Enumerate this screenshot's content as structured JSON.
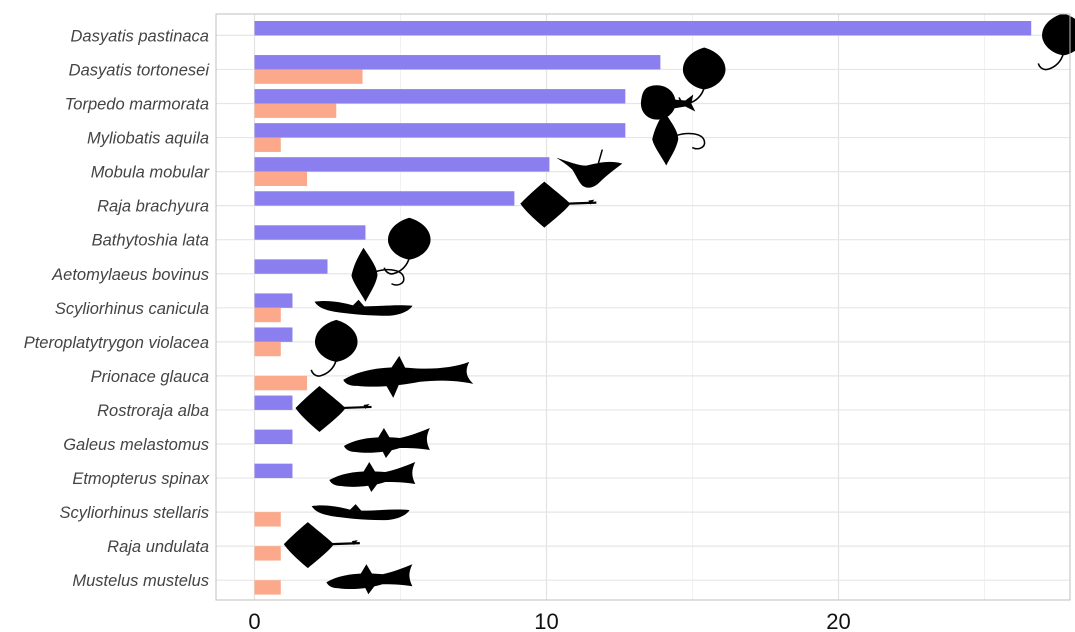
{
  "chart_data": {
    "type": "bar",
    "orientation": "horizontal",
    "categories": [
      "Dasyatis pastinaca",
      "Dasyatis tortonesei",
      "Torpedo marmorata",
      "Myliobatis aquila",
      "Mobula mobular",
      "Raja brachyura",
      "Bathytoshia lata",
      "Aetomylaeus bovinus",
      "Scyliorhinus canicula",
      "Pteroplatytrygon violacea",
      "Prionace glauca",
      "Rostroraja alba",
      "Galeus melastomus",
      "Etmopterus spinax",
      "Scyliorhinus stellaris",
      "Raja undulata",
      "Mustelus mustelus"
    ],
    "series": [
      {
        "values": [
          26.6,
          13.9,
          12.7,
          12.7,
          10.1,
          8.9,
          3.8,
          2.5,
          1.3,
          1.3,
          0,
          1.3,
          1.3,
          1.3,
          0,
          0,
          0
        ],
        "color": "#8B7FF0"
      },
      {
        "values": [
          0,
          3.7,
          2.8,
          0.9,
          1.8,
          0,
          0,
          0,
          0.9,
          0.9,
          1.8,
          0,
          0,
          0,
          0.9,
          0.9,
          0.9
        ],
        "color": "#FBA98A"
      }
    ],
    "xticks": [
      0,
      10,
      20
    ],
    "xlim": [
      -1.4,
      27.9
    ],
    "grid": true,
    "silhouettes": [
      {
        "category": "Dasyatis pastinaca",
        "icon": "stingray-silhouette-icon",
        "x": 27.7
      },
      {
        "category": "Dasyatis tortonesei",
        "icon": "stingray-silhouette-icon",
        "x": 15.4
      },
      {
        "category": "Torpedo marmorata",
        "icon": "torpedo-ray-silhouette-icon",
        "x": 14.0
      },
      {
        "category": "Myliobatis aquila",
        "icon": "eagle-ray-silhouette-icon",
        "x": 14.1
      },
      {
        "category": "Mobula mobular",
        "icon": "manta-ray-silhouette-icon",
        "x": 11.5
      },
      {
        "category": "Raja brachyura",
        "icon": "skate-silhouette-icon",
        "x": 10.2
      },
      {
        "category": "Bathytoshia lata",
        "icon": "stingray-silhouette-icon",
        "x": 5.3
      },
      {
        "category": "Aetomylaeus bovinus",
        "icon": "eagle-ray-silhouette-icon",
        "x": 3.8
      },
      {
        "category": "Scyliorhinus canicula",
        "icon": "catshark-silhouette-icon",
        "x": 3.7
      },
      {
        "category": "Pteroplatytrygon violacea",
        "icon": "stingray-silhouette-icon",
        "x": 2.8
      },
      {
        "category": "Prionace glauca",
        "icon": "blue-shark-silhouette-icon",
        "x": 5.3
      },
      {
        "category": "Rostroraja alba",
        "icon": "skate-silhouette-icon",
        "x": 2.5
      },
      {
        "category": "Galeus melastomus",
        "icon": "shark-silhouette-icon",
        "x": 4.5
      },
      {
        "category": "Etmopterus spinax",
        "icon": "shark-silhouette-icon",
        "x": 4.0
      },
      {
        "category": "Scyliorhinus stellaris",
        "icon": "catshark-silhouette-icon",
        "x": 3.6
      },
      {
        "category": "Raja undulata",
        "icon": "skate-silhouette-icon",
        "x": 2.1
      },
      {
        "category": "Mustelus mustelus",
        "icon": "shark-silhouette-icon",
        "x": 3.9
      }
    ]
  }
}
